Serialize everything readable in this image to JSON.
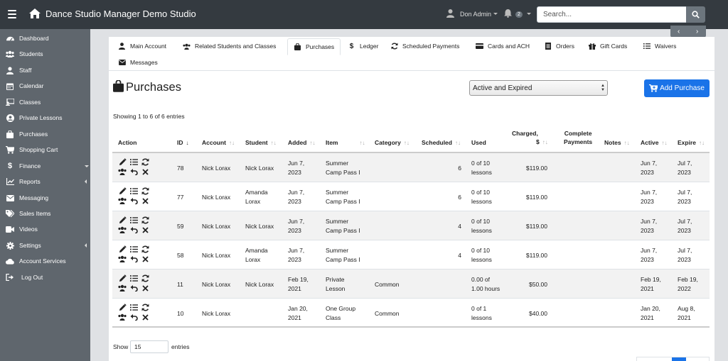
{
  "app": {
    "brand": "Dance Studio Manager Demo Studio",
    "user_name": "Don Admin",
    "notification_count": "2",
    "search_placeholder": "Search..."
  },
  "sidebar": {
    "items": [
      {
        "label": "Dashboard",
        "icon": "dashboard-icon"
      },
      {
        "label": "Students",
        "icon": "users-icon"
      },
      {
        "label": "Staff",
        "icon": "staff-icon"
      },
      {
        "label": "Calendar",
        "icon": "calendar-icon"
      },
      {
        "label": "Classes",
        "icon": "classes-icon"
      },
      {
        "label": "Private Lessons",
        "icon": "user-circle-icon"
      },
      {
        "label": "Purchases",
        "icon": "shopping-bag-icon"
      },
      {
        "label": "Shopping Cart",
        "icon": "cart-icon"
      },
      {
        "label": "Finance",
        "icon": "dollar-icon"
      },
      {
        "label": "Reports",
        "icon": "chart-icon"
      },
      {
        "label": "Messaging",
        "icon": "envelope-icon"
      },
      {
        "label": "Sales Items",
        "icon": "tags-icon"
      },
      {
        "label": "Videos",
        "icon": "video-icon"
      },
      {
        "label": "Settings",
        "icon": "gear-icon"
      },
      {
        "label": "Account Services",
        "icon": "cloud-icon"
      },
      {
        "label": "Log Out",
        "icon": "sign-out-icon"
      }
    ]
  },
  "tabs": [
    {
      "label": "Main Account",
      "icon": "user-icon"
    },
    {
      "label": "Related Students and Classes",
      "icon": "users-icon"
    },
    {
      "label": "Purchases",
      "icon": "shopping-bag-icon"
    },
    {
      "label": "Ledger",
      "icon": "dollar-icon"
    },
    {
      "label": "Scheduled Payments",
      "icon": "sync-icon"
    },
    {
      "label": "Cards and ACH",
      "icon": "credit-card-icon"
    },
    {
      "label": "Orders",
      "icon": "receipt-icon"
    },
    {
      "label": "Gift Cards",
      "icon": "gift-icon"
    },
    {
      "label": "Waivers",
      "icon": "list-icon"
    },
    {
      "label": "Messages",
      "icon": "envelope-icon"
    }
  ],
  "page": {
    "title": "Purchases",
    "filter_value": "Active and Expired",
    "add_button": "Add Purchase",
    "showing": "Showing 1 to 6 of 6 entries",
    "show_label": "Show",
    "page_size": "15",
    "entries_label": "entries"
  },
  "table": {
    "headers": {
      "action": "Action",
      "id": "ID",
      "account": "Account",
      "student": "Student",
      "added": "Added",
      "item": "Item",
      "category": "Category",
      "scheduled": "Scheduled",
      "used": "Used",
      "charged_1": "Charged,",
      "charged_2": "$",
      "complete_1": "Complete",
      "complete_2": "Payments",
      "notes": "Notes",
      "active": "Active",
      "expire": "Expire"
    },
    "rows": [
      {
        "id": "78",
        "account": "Nick Lorax",
        "student_1": "Nick Lorax",
        "student_2": "",
        "added_1": "Jun 7,",
        "added_2": "2023",
        "item_1": "Summer",
        "item_2": "Camp Pass I",
        "category": "",
        "scheduled": "6",
        "used_1": "0 of 10",
        "used_2": "lessons",
        "charged": "$119.00",
        "active_1": "Jun 7,",
        "active_2": "2023",
        "expire_1": "Jul 7,",
        "expire_2": "2023"
      },
      {
        "id": "77",
        "account": "Nick Lorax",
        "student_1": "Amanda",
        "student_2": "Lorax",
        "added_1": "Jun 7,",
        "added_2": "2023",
        "item_1": "Summer",
        "item_2": "Camp Pass I",
        "category": "",
        "scheduled": "6",
        "used_1": "0 of 10",
        "used_2": "lessons",
        "charged": "$119.00",
        "active_1": "Jun 7,",
        "active_2": "2023",
        "expire_1": "Jul 7,",
        "expire_2": "2023"
      },
      {
        "id": "59",
        "account": "Nick Lorax",
        "student_1": "Nick Lorax",
        "student_2": "",
        "added_1": "Jun 7,",
        "added_2": "2023",
        "item_1": "Summer",
        "item_2": "Camp Pass I",
        "category": "",
        "scheduled": "4",
        "used_1": "0 of 10",
        "used_2": "lessons",
        "charged": "$119.00",
        "active_1": "Jun 7,",
        "active_2": "2023",
        "expire_1": "Jul 7,",
        "expire_2": "2023"
      },
      {
        "id": "58",
        "account": "Nick Lorax",
        "student_1": "Amanda",
        "student_2": "Lorax",
        "added_1": "Jun 7,",
        "added_2": "2023",
        "item_1": "Summer",
        "item_2": "Camp Pass I",
        "category": "",
        "scheduled": "4",
        "used_1": "0 of 10",
        "used_2": "lessons",
        "charged": "$119.00",
        "active_1": "Jun 7,",
        "active_2": "2023",
        "expire_1": "Jul 7,",
        "expire_2": "2023"
      },
      {
        "id": "11",
        "account": "Nick Lorax",
        "student_1": "Nick Lorax",
        "student_2": "",
        "added_1": "Feb 19,",
        "added_2": "2021",
        "item_1": "Private",
        "item_2": "Lesson",
        "category": "Common",
        "scheduled": "",
        "used_1": "0.00 of",
        "used_2": "1.00 hours",
        "charged": "$50.00",
        "active_1": "Feb 19,",
        "active_2": "2021",
        "expire_1": "Feb 19,",
        "expire_2": "2022"
      },
      {
        "id": "10",
        "account": "Nick Lorax",
        "student_1": "",
        "student_2": "",
        "added_1": "Jan 20,",
        "added_2": "2021",
        "item_1": "One Group",
        "item_2": "Class",
        "category": "Common",
        "scheduled": "",
        "used_1": "0 of 1",
        "used_2": "lessons",
        "charged": "$40.00",
        "active_1": "Jan 20,",
        "active_2": "2021",
        "expire_1": "Aug 8,",
        "expire_2": "2021"
      }
    ]
  }
}
